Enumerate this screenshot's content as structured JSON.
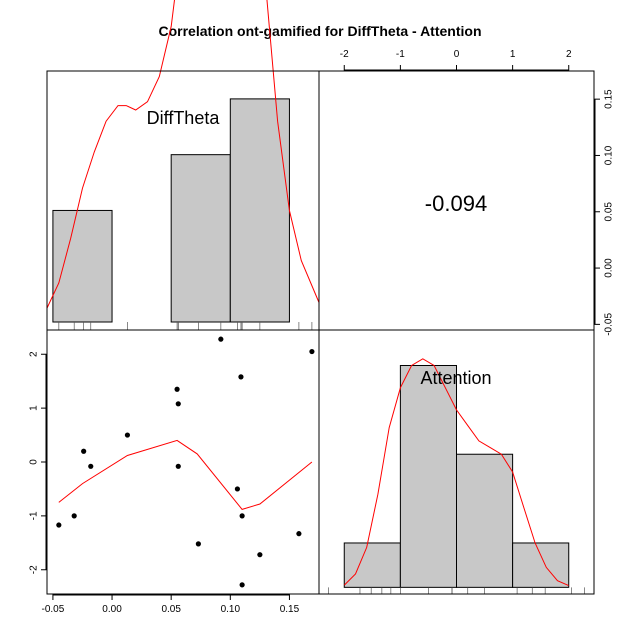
{
  "chart_data": {
    "type": "pairs",
    "title": "Correlation ont-gamified for DiffTheta - Attention",
    "variables": [
      "DiffTheta",
      "Attention"
    ],
    "correlation_label": "-0.094",
    "diffTheta_axis": {
      "lim": [
        -0.055,
        0.175
      ],
      "ticks": [
        -0.05,
        0.0,
        0.05,
        0.1,
        0.15
      ],
      "tick_labels": [
        "-0.05",
        "0.00",
        "0.05",
        "0.10",
        "0.15"
      ]
    },
    "attention_axis": {
      "lim": [
        -2.45,
        2.45
      ],
      "ticks": [
        -2,
        -1,
        0,
        1,
        2
      ],
      "tick_labels": [
        "-2",
        "-1",
        "0",
        "1",
        "2"
      ]
    },
    "diffTheta_hist": {
      "breaks": [
        -0.05,
        0.0,
        0.05,
        0.1,
        0.15
      ],
      "counts": [
        2,
        0,
        3,
        4
      ],
      "ylim": [
        0,
        4.5
      ]
    },
    "diffTheta_density": [
      [
        -0.055,
        0.25
      ],
      [
        -0.045,
        0.7
      ],
      [
        -0.035,
        1.5
      ],
      [
        -0.025,
        2.4
      ],
      [
        -0.015,
        3.05
      ],
      [
        -0.005,
        3.6
      ],
      [
        0.005,
        3.88
      ],
      [
        0.012,
        3.88
      ],
      [
        0.02,
        3.8
      ],
      [
        0.03,
        3.95
      ],
      [
        0.04,
        4.4
      ],
      [
        0.05,
        5.3
      ],
      [
        0.06,
        7.0
      ],
      [
        0.068,
        8.5
      ],
      [
        0.12,
        8.5
      ],
      [
        0.128,
        6.5
      ],
      [
        0.14,
        3.6
      ],
      [
        0.15,
        2.0
      ],
      [
        0.16,
        1.1
      ],
      [
        0.175,
        0.35
      ]
    ],
    "diffTheta_rug": [
      -0.045,
      -0.032,
      -0.024,
      -0.018,
      0.013,
      0.055,
      0.056,
      0.056,
      0.073,
      0.092,
      0.106,
      0.109,
      0.11,
      0.11,
      0.125,
      0.158,
      0.169
    ],
    "attention_hist": {
      "breaks": [
        -2.0,
        -1.0,
        0.0,
        1.0,
        2.0
      ],
      "counts": [
        1,
        5,
        3,
        1
      ],
      "ylim": [
        -0.15,
        5.8
      ]
    },
    "attention_density": [
      [
        -2.0,
        0.05
      ],
      [
        -1.8,
        0.3
      ],
      [
        -1.6,
        0.9
      ],
      [
        -1.4,
        2.1
      ],
      [
        -1.2,
        3.6
      ],
      [
        -1.0,
        4.5
      ],
      [
        -0.8,
        5.0
      ],
      [
        -0.6,
        5.15
      ],
      [
        -0.4,
        5.0
      ],
      [
        -0.2,
        4.5
      ],
      [
        0.0,
        4.0
      ],
      [
        0.2,
        3.65
      ],
      [
        0.4,
        3.3
      ],
      [
        0.6,
        3.15
      ],
      [
        0.8,
        3.0
      ],
      [
        1.0,
        2.6
      ],
      [
        1.2,
        1.8
      ],
      [
        1.4,
        1.0
      ],
      [
        1.6,
        0.45
      ],
      [
        1.8,
        0.15
      ],
      [
        2.0,
        0.04
      ]
    ],
    "attention_rug": [
      -2.28,
      -1.72,
      -1.52,
      -1.33,
      -1.17,
      -1.0,
      -0.5,
      -0.08,
      -0.08,
      0.2,
      0.5,
      1.08,
      1.35,
      1.58,
      2.05,
      2.28
    ],
    "scatter_points": [
      {
        "x": -0.045,
        "y": -1.17
      },
      {
        "x": -0.032,
        "y": -1.0
      },
      {
        "x": -0.024,
        "y": 0.2
      },
      {
        "x": -0.018,
        "y": -0.08
      },
      {
        "x": 0.013,
        "y": 0.5
      },
      {
        "x": 0.055,
        "y": 1.35
      },
      {
        "x": 0.056,
        "y": 1.08
      },
      {
        "x": 0.056,
        "y": -0.08
      },
      {
        "x": 0.073,
        "y": -1.52
      },
      {
        "x": 0.092,
        "y": 2.28
      },
      {
        "x": 0.106,
        "y": -0.5
      },
      {
        "x": 0.109,
        "y": 1.58
      },
      {
        "x": 0.11,
        "y": -1.0
      },
      {
        "x": 0.11,
        "y": -2.28
      },
      {
        "x": 0.125,
        "y": -1.72
      },
      {
        "x": 0.158,
        "y": -1.33
      },
      {
        "x": 0.169,
        "y": 2.05
      }
    ],
    "scatter_smooth": [
      [
        -0.045,
        -0.75
      ],
      [
        -0.025,
        -0.4
      ],
      [
        0.013,
        0.12
      ],
      [
        0.055,
        0.4
      ],
      [
        0.072,
        0.15
      ],
      [
        0.11,
        -0.88
      ],
      [
        0.125,
        -0.78
      ],
      [
        0.169,
        0.0
      ]
    ],
    "colors": {
      "bars": "#c8c8c8",
      "density": "#ff0000",
      "smooth": "#ff0000",
      "points": "#000000",
      "axes": "#000000"
    }
  }
}
